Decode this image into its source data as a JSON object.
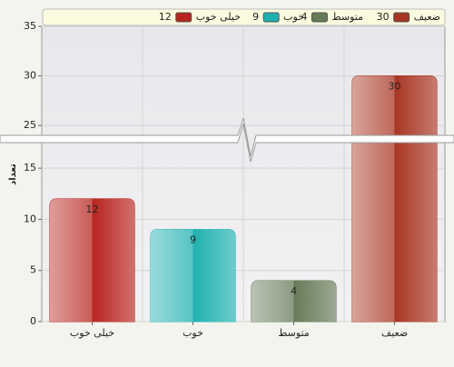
{
  "chart_data": {
    "type": "bar",
    "y_label": "تعداد",
    "categories": [
      "خیلی خوب",
      "خوب",
      "متوسط",
      "ضعیف"
    ],
    "values": [
      12,
      9,
      4,
      30
    ],
    "colors": [
      "#b8241f",
      "#1fb0b0",
      "#667a58",
      "#a83522"
    ],
    "ylim": [
      0,
      35
    ],
    "yticks": [
      0,
      5,
      10,
      15,
      25,
      30,
      35
    ],
    "y_break": [
      17.5,
      24
    ],
    "grid": true,
    "legend": "top"
  }
}
